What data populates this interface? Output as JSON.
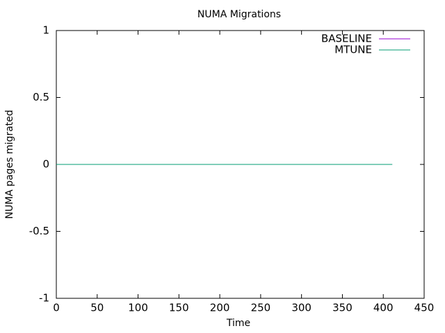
{
  "chart_data": {
    "type": "line",
    "title": "NUMA Migrations",
    "x_label": "Time",
    "y_label": "NUMA pages migrated",
    "x": [
      0,
      411
    ],
    "series": [
      {
        "name": "BASELINE",
        "color": "#9400d3",
        "values": [
          0,
          0
        ]
      },
      {
        "name": "MTUNE",
        "color": "#009e73",
        "values": [
          0,
          0
        ]
      }
    ],
    "xlim": [
      0,
      450
    ],
    "xticks": [
      0,
      50,
      100,
      150,
      200,
      250,
      300,
      350,
      400,
      450
    ],
    "ylim": [
      -1,
      1
    ],
    "yticks": [
      -1,
      -0.5,
      0,
      0.5,
      1
    ],
    "grid": false,
    "legend": "top-right"
  }
}
